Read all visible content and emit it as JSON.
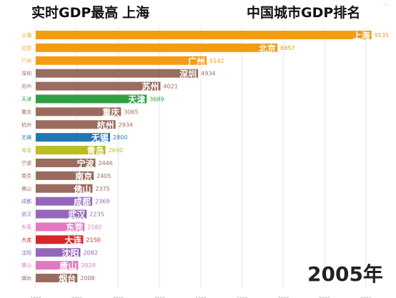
{
  "header": {
    "left_title": "实时GDP最高",
    "leader_city": "上海",
    "right_title": "中国城市GDP排名",
    "corner_mark": "⋯"
  },
  "year_label": "2005年",
  "chart_data": {
    "type": "bar",
    "orientation": "horizontal",
    "categories": [
      "上海",
      "北京",
      "广州",
      "深圳",
      "苏州",
      "天津",
      "重庆",
      "杭州",
      "无锡",
      "青岛",
      "宁波",
      "南京",
      "佛山",
      "成都",
      "武汉",
      "东莞",
      "大连",
      "沈阳",
      "唐山",
      "烟台"
    ],
    "values": [
      9135,
      6857,
      5142,
      4934,
      4021,
      3689,
      3065,
      2934,
      2800,
      2690,
      2446,
      2405,
      2375,
      2369,
      2235,
      2182,
      2150,
      2082,
      2028,
      2008
    ],
    "colors": [
      "#f39c12",
      "#f39c12",
      "#f39c12",
      "#9a6b5e",
      "#9a6b5e",
      "#2ea043",
      "#9a6b5e",
      "#9a6b5e",
      "#1f77b4",
      "#bcbd22",
      "#9a6b5e",
      "#9a6b5e",
      "#9a6b5e",
      "#9467bd",
      "#9467bd",
      "#e377c2",
      "#d62728",
      "#9467bd",
      "#e377c2",
      "#9a6b5e"
    ],
    "x_ticks": [
      1000,
      2000,
      3000,
      4000,
      5000,
      6000,
      7000,
      8000,
      9000
    ],
    "x_range": [
      1000,
      9400
    ],
    "grid": true
  }
}
